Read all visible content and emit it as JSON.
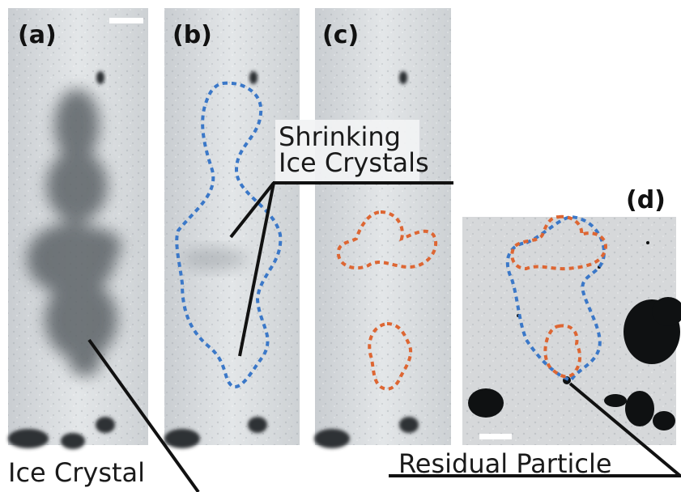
{
  "panels": {
    "a": {
      "label": "(a)"
    },
    "b": {
      "label": "(b)"
    },
    "c": {
      "label": "(c)"
    },
    "d": {
      "label": "(d)"
    }
  },
  "annotations": {
    "shrinking_line1": "Shrinking",
    "shrinking_line2": "Ice Crystals",
    "ice_crystal": "Ice Crystal",
    "residual_particle": "Residual Particle"
  },
  "colors": {
    "outline_blue": "#3b78c8",
    "outline_orange": "#dd6633",
    "pointer_line": "#111111"
  }
}
